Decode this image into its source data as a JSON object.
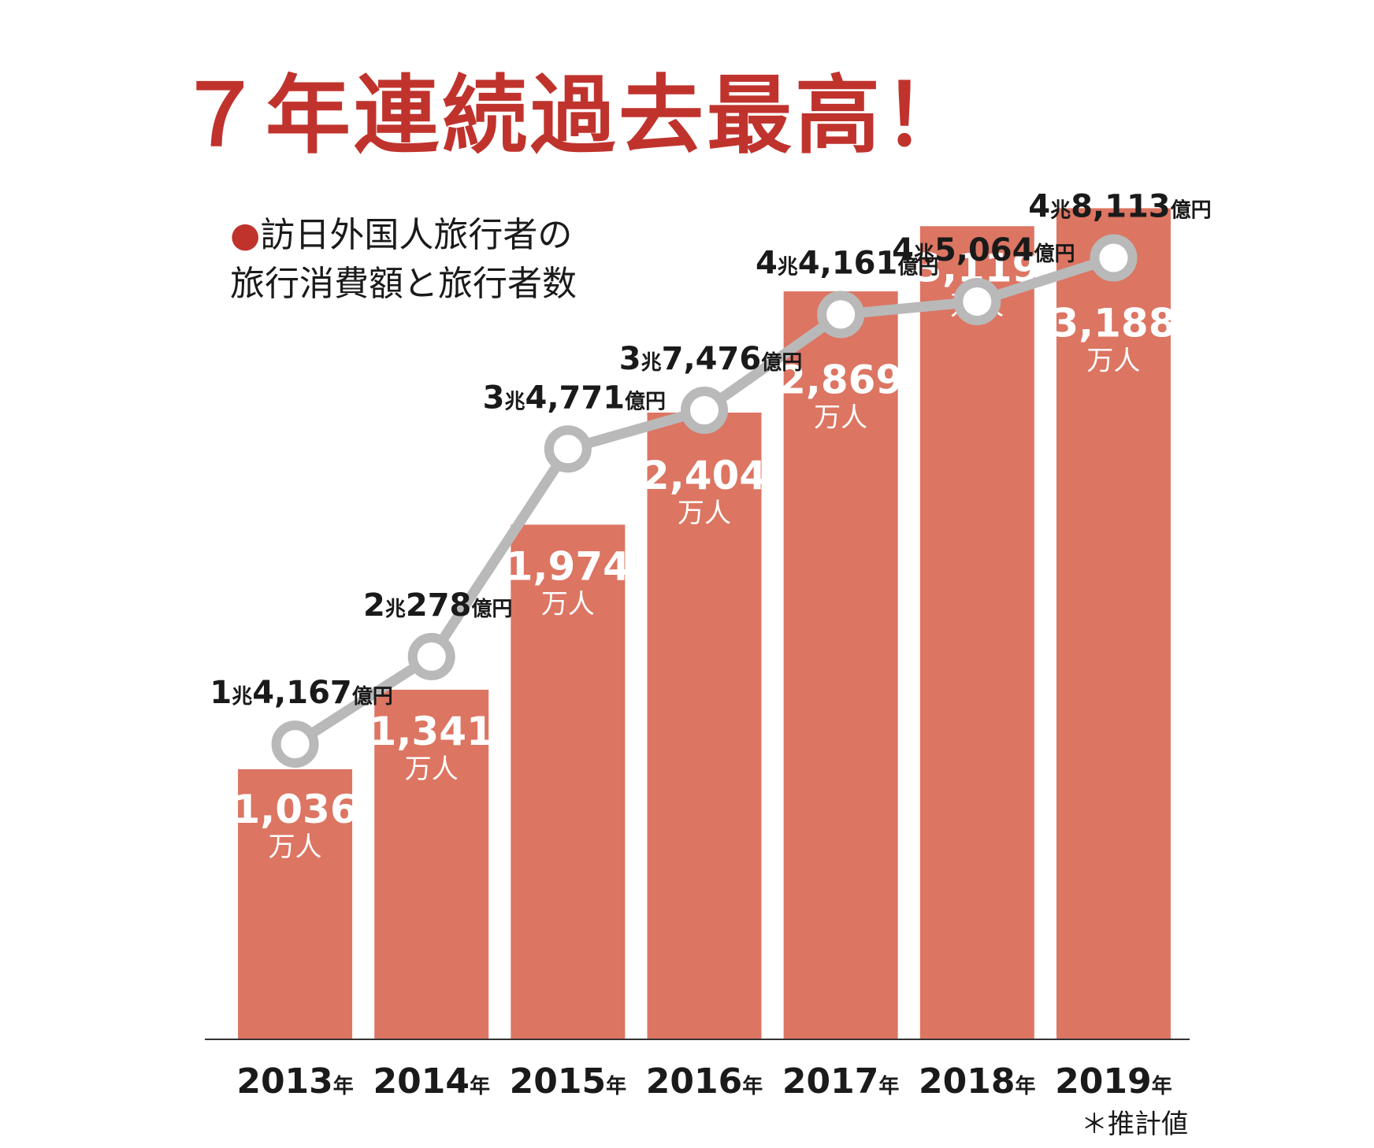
{
  "headline": "７年連続過去最高！",
  "subtitle": {
    "bullet": "●",
    "line1": "訪日外国人旅行者の",
    "line2": "旅行消費額と旅行者数"
  },
  "note": "＊推計値",
  "colors": {
    "headline": "#c0332d",
    "bar": "#dc7562",
    "line": "#b9b9b9"
  },
  "chart_data": {
    "type": "bar",
    "categories": [
      "2013",
      "2014",
      "2015",
      "2016",
      "2017",
      "2018",
      "2019"
    ],
    "category_suffix": "年",
    "series": [
      {
        "type": "bar",
        "values": [
          1036,
          1341,
          1974,
          2404,
          2869,
          3119,
          3188
        ],
        "labels": [
          "1,036",
          "1,341",
          "1,974",
          "2,404",
          "2,869",
          "3,119",
          "3,188"
        ],
        "unit_label": "万人"
      },
      {
        "type": "line",
        "values": [
          14167,
          20278,
          34771,
          37476,
          44161,
          45064,
          48113
        ],
        "labels": [
          [
            "1",
            "兆",
            "4,167",
            "億円"
          ],
          [
            "2",
            "兆",
            "278",
            "億円"
          ],
          [
            "3",
            "兆",
            "4,771",
            "億円"
          ],
          [
            "3",
            "兆",
            "7,476",
            "億円"
          ],
          [
            "4",
            "兆",
            "4,161",
            "億円"
          ],
          [
            "4",
            "兆",
            "5,064",
            "億円"
          ],
          [
            "4",
            "兆",
            "8,113",
            "億円"
          ]
        ]
      }
    ],
    "bar_axis_max": 3600,
    "line_axis": [
      9500,
      51000
    ],
    "grid": false,
    "legend": "none"
  }
}
